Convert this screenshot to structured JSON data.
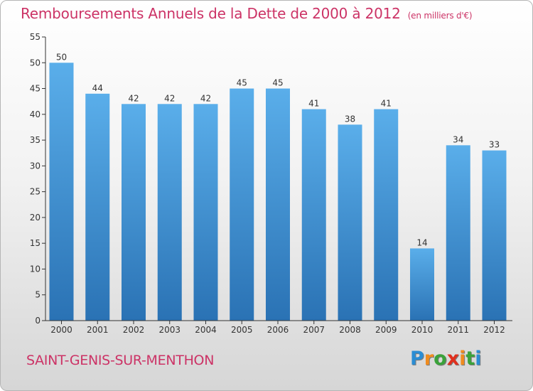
{
  "title": "Remboursements Annuels de la Dette de 2000 à 2012",
  "unit_note": "(en milliers d'€)",
  "commune": "SAINT-GENIS-SUR-MENTHON",
  "logo": {
    "letters": [
      "P",
      "r",
      "o",
      "x",
      "i",
      "t",
      "i"
    ],
    "colors": [
      "#2a8dd4",
      "#f08c1e",
      "#3aa23a",
      "#e0301e",
      "#f08c1e",
      "#3aa23a",
      "#2a8dd4"
    ]
  },
  "colors": {
    "bar_top": "#5aaeea",
    "bar_bottom": "#2a72b4",
    "axis": "#333333",
    "title": "#cc3366"
  },
  "chart_data": {
    "type": "bar",
    "title": "Remboursements Annuels de la Dette de 2000 à 2012",
    "xlabel": "",
    "ylabel": "(en milliers d'€)",
    "categories": [
      "2000",
      "2001",
      "2002",
      "2003",
      "2004",
      "2005",
      "2006",
      "2007",
      "2008",
      "2009",
      "2010",
      "2011",
      "2012"
    ],
    "values": [
      50,
      44,
      42,
      42,
      42,
      45,
      45,
      41,
      38,
      41,
      14,
      34,
      33
    ],
    "ylim": [
      0,
      55
    ],
    "yticks": [
      0,
      5,
      10,
      15,
      20,
      25,
      30,
      35,
      40,
      45,
      50,
      55
    ],
    "grid": false,
    "legend": "none"
  }
}
